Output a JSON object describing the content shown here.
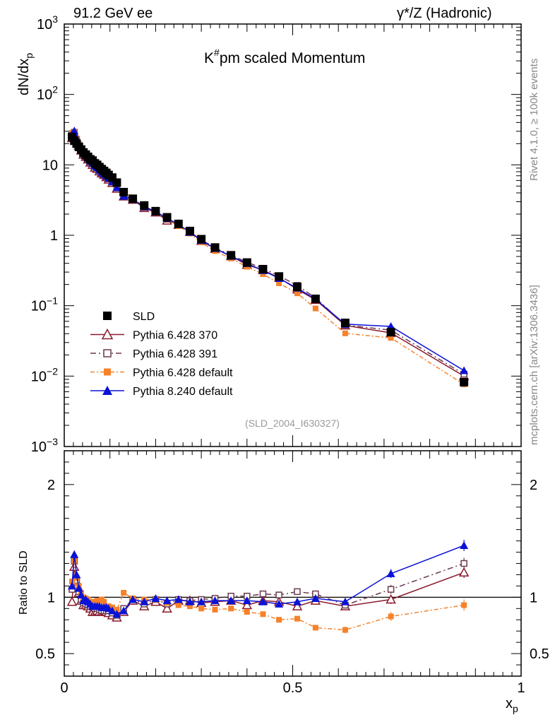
{
  "header": {
    "left": "91.2 GeV ee",
    "right_main": "γ*/Z (Hadronic)"
  },
  "side": {
    "rivet": "Rivet 4.1.0, ≥ 100k events",
    "mcplots": "mcplots.cern.ch [arXiv:1306.3436]"
  },
  "chart_data": {
    "type": "line",
    "title": "K#pm scaled Momentum",
    "title_main": "K",
    "title_sup": "#",
    "title_rest": "pm scaled Momentum",
    "analysis_id": "(SLD_2004_I630327)",
    "xlabel": "x",
    "xlabel_sub": "p",
    "ylabel": "dN/dx",
    "ylabel_sub": "p",
    "ratio_ylabel": "Ratio to SLD",
    "xlim": [
      0,
      1
    ],
    "ylim": [
      0.001,
      1000
    ],
    "ratio_ylim": [
      0.3,
      2.3
    ],
    "x_ticks": [
      "0",
      "0.5",
      "1"
    ],
    "y_ticks": [
      {
        "base": "10",
        "exp": "3"
      },
      {
        "base": "10",
        "exp": "2"
      },
      {
        "base": "10",
        "exp": ""
      },
      {
        "base": "1",
        "exp": ""
      },
      {
        "base": "10",
        "exp": "−1"
      },
      {
        "base": "10",
        "exp": "−2"
      },
      {
        "base": "10",
        "exp": "−3"
      }
    ],
    "ratio_ticks": [
      "2",
      "1",
      "0.5"
    ],
    "x": [
      0.017,
      0.022,
      0.027,
      0.032,
      0.037,
      0.042,
      0.047,
      0.052,
      0.057,
      0.062,
      0.067,
      0.072,
      0.077,
      0.082,
      0.087,
      0.092,
      0.097,
      0.105,
      0.115,
      0.13,
      0.15,
      0.175,
      0.2,
      0.225,
      0.25,
      0.275,
      0.3,
      0.33,
      0.365,
      0.4,
      0.435,
      0.47,
      0.51,
      0.55,
      0.615,
      0.715,
      0.875
    ],
    "data": {
      "name": "SLD",
      "values": [
        25,
        22,
        20,
        18,
        16.5,
        15,
        14,
        13,
        12,
        11.5,
        10.5,
        10,
        9.3,
        8.7,
        8.2,
        7.7,
        7.2,
        6.6,
        5.6,
        4.1,
        3.3,
        2.65,
        2.2,
        1.8,
        1.45,
        1.15,
        0.88,
        0.67,
        0.52,
        0.41,
        0.33,
        0.26,
        0.185,
        0.125,
        0.057,
        0.042,
        0.0082
      ]
    },
    "series": [
      {
        "name": "Pythia 6.428 370",
        "color": "#8b1a2b",
        "marker": "triangle-open",
        "dash": "",
        "ratio": [
          0.96,
          1.27,
          1.14,
          1.04,
          0.97,
          0.93,
          0.93,
          0.92,
          0.9,
          0.87,
          0.87,
          0.88,
          0.87,
          0.87,
          0.88,
          0.87,
          0.86,
          0.84,
          0.82,
          0.87,
          0.97,
          0.92,
          0.96,
          0.9,
          0.97,
          0.97,
          0.95,
          0.96,
          0.97,
          0.93,
          0.97,
          0.96,
          0.92,
          0.97,
          0.92,
          0.98,
          1.22
        ]
      },
      {
        "name": "Pythia 6.428 391",
        "color": "#6b3a4e",
        "marker": "square-open",
        "dash": "8,4,2,4",
        "ratio": [
          1.07,
          1.32,
          1.15,
          1.05,
          0.98,
          0.95,
          0.94,
          0.93,
          0.92,
          0.91,
          0.9,
          0.9,
          0.89,
          0.88,
          0.88,
          0.88,
          0.88,
          0.86,
          0.84,
          0.9,
          0.98,
          0.94,
          0.98,
          0.94,
          0.98,
          0.97,
          0.98,
          0.99,
          1.01,
          1.01,
          1.03,
          1.02,
          1.05,
          1.03,
          0.93,
          1.07,
          1.3
        ]
      },
      {
        "name": "Pythia 6.428 default",
        "color": "#f5822a",
        "marker": "square-filled",
        "dash": "6,3,2,3",
        "ratio": [
          1.14,
          1.32,
          1.17,
          1.1,
          1.04,
          1.0,
          0.99,
          0.98,
          0.96,
          0.96,
          0.96,
          0.97,
          0.97,
          0.98,
          0.96,
          0.92,
          0.92,
          0.91,
          0.89,
          1.04,
          0.99,
          0.98,
          0.98,
          0.95,
          0.93,
          0.92,
          0.9,
          0.89,
          0.9,
          0.87,
          0.85,
          0.8,
          0.81,
          0.73,
          0.71,
          0.83,
          0.93
        ]
      },
      {
        "name": "Pythia 8.240 default",
        "color": "#0a12d6",
        "marker": "triangle-filled",
        "dash": "",
        "ratio": [
          1.1,
          1.38,
          1.2,
          1.08,
          1.02,
          0.97,
          0.98,
          0.96,
          0.94,
          0.92,
          0.92,
          0.92,
          0.92,
          0.91,
          0.91,
          0.91,
          0.9,
          0.88,
          0.85,
          0.88,
          0.98,
          0.96,
          0.99,
          0.97,
          0.98,
          0.96,
          0.96,
          0.97,
          0.97,
          0.97,
          0.96,
          0.94,
          0.96,
          0.99,
          0.96,
          1.21,
          1.46
        ]
      }
    ]
  }
}
